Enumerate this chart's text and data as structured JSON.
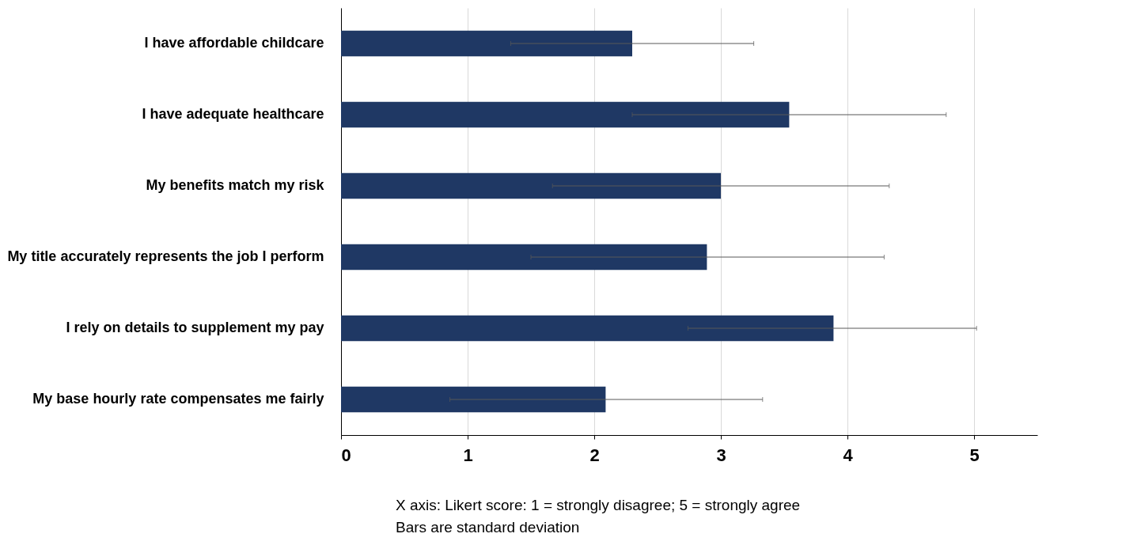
{
  "chart_data": {
    "type": "bar",
    "orientation": "horizontal",
    "categories": [
      "I have affordable childcare",
      "I have adequate healthcare",
      "My benefits match my risk",
      "My title accurately represents the job I perform",
      "I rely on details to supplement my pay",
      "My base hourly rate compensates me fairly"
    ],
    "values": [
      2.3,
      3.54,
      3.0,
      2.89,
      3.89,
      2.09
    ],
    "errors": [
      [
        1.34,
        3.26
      ],
      [
        2.3,
        4.78
      ],
      [
        1.67,
        4.33
      ],
      [
        1.5,
        4.29
      ],
      [
        2.74,
        5.02
      ],
      [
        0.86,
        3.33
      ]
    ],
    "color": "#1f3864",
    "xlim": [
      0,
      5.5
    ],
    "xticks": [
      0,
      1,
      2,
      3,
      4,
      5
    ],
    "grid": "x",
    "annotations": [
      "X axis: Likert score: 1 = strongly disagree; 5 = strongly agree",
      "Bars are standard deviation"
    ]
  }
}
